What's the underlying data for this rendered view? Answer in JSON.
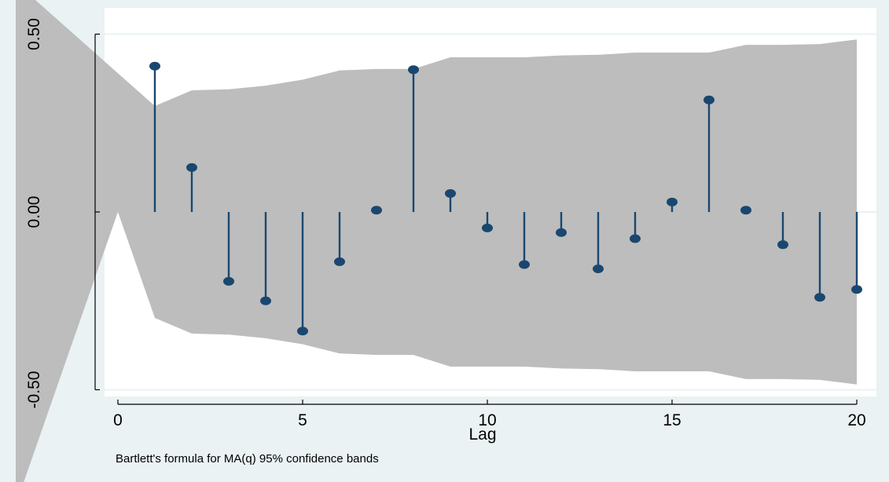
{
  "chart_data": {
    "type": "stem",
    "xlabel": "Lag",
    "ylabel": "",
    "xlim": [
      -0.5,
      20.5
    ],
    "ylim": [
      -0.6,
      0.6
    ],
    "x_ticks": [
      {
        "value": 0,
        "label": "0"
      },
      {
        "value": 5,
        "label": "5"
      },
      {
        "value": 10,
        "label": "10"
      },
      {
        "value": 15,
        "label": "15"
      },
      {
        "value": 20,
        "label": "20"
      }
    ],
    "y_ticks": [
      {
        "value": -0.5,
        "label": "-0.50"
      },
      {
        "value": 0,
        "label": "0.00"
      },
      {
        "value": 0.5,
        "label": "0.50"
      }
    ],
    "grid": true,
    "series": [
      {
        "x": [
          1,
          2,
          3,
          4,
          5,
          6,
          7,
          8,
          9,
          10,
          11,
          12,
          13,
          14,
          15,
          16,
          17,
          18,
          19,
          20
        ],
        "values": [
          0.41,
          0.125,
          -0.195,
          -0.25,
          -0.335,
          -0.14,
          0.005,
          0.4,
          0.052,
          -0.045,
          -0.148,
          -0.058,
          -0.16,
          -0.075,
          0.028,
          0.315,
          0.005,
          -0.092,
          -0.24,
          -0.218
        ]
      }
    ],
    "confidence_band": {
      "x": [
        0,
        1,
        2,
        3,
        4,
        5,
        6,
        7,
        8,
        9,
        10,
        11,
        12,
        13,
        14,
        15,
        16,
        17,
        18,
        19,
        20
      ],
      "upper": [
        0,
        0.298,
        0.342,
        0.345,
        0.355,
        0.372,
        0.398,
        0.402,
        0.402,
        0.435,
        0.435,
        0.435,
        0.44,
        0.442,
        0.448,
        0.448,
        0.448,
        0.47,
        0.47,
        0.472,
        0.485
      ]
    },
    "colors": {
      "band": "#bdbdbd",
      "stem": "#1a476f",
      "plot_background": "#ffffff",
      "outer_background": "#eaf2f3",
      "grid": "#eaf2f3"
    },
    "note": "Bartlett's formula for MA(q) 95% confidence bands"
  }
}
